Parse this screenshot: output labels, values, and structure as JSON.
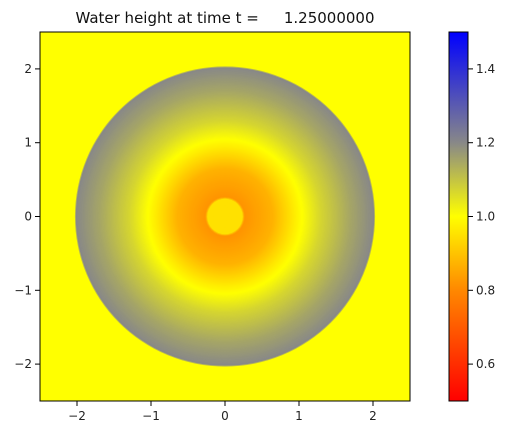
{
  "chart_data": {
    "type": "heatmap",
    "title_prefix": "Water height at time t =",
    "title_value": "1.25000000",
    "xlabel": "",
    "ylabel": "",
    "xlim": [
      -2.5,
      2.5
    ],
    "ylim": [
      -2.5,
      2.5
    ],
    "xticks": [
      -2,
      -1,
      0,
      1,
      2
    ],
    "xtick_labels": [
      "−2",
      "−1",
      "0",
      "1",
      "2"
    ],
    "yticks": [
      -2,
      -1,
      0,
      1,
      2
    ],
    "ytick_labels": [
      "−2",
      "−1",
      "0",
      "1",
      "2"
    ],
    "grid": false,
    "colorbar": {
      "range": [
        0.5,
        1.5
      ],
      "ticks": [
        0.6,
        0.8,
        1.0,
        1.2,
        1.4
      ],
      "tick_labels": [
        "0.6",
        "0.8",
        "1.0",
        "1.2",
        "1.4"
      ],
      "colors": [
        {
          "value": 0.5,
          "color": "#ff0000"
        },
        {
          "value": 0.8,
          "color": "#ff8800"
        },
        {
          "value": 1.0,
          "color": "#ffff00"
        },
        {
          "value": 1.2,
          "color": "#888888"
        },
        {
          "value": 1.5,
          "color": "#0000ff"
        }
      ]
    },
    "radial_profile": [
      {
        "r": 0.0,
        "h": 0.95
      },
      {
        "r": 0.24,
        "h": 0.95
      },
      {
        "r": 0.27,
        "h": 0.82
      },
      {
        "r": 0.65,
        "h": 0.87
      },
      {
        "r": 0.95,
        "h": 0.97
      },
      {
        "r": 1.05,
        "h": 1.0
      },
      {
        "r": 1.3,
        "h": 1.07
      },
      {
        "r": 1.7,
        "h": 1.15
      },
      {
        "r": 2.02,
        "h": 1.2
      },
      {
        "r": 2.04,
        "h": 1.0
      },
      {
        "r": 3.6,
        "h": 1.0
      }
    ]
  }
}
